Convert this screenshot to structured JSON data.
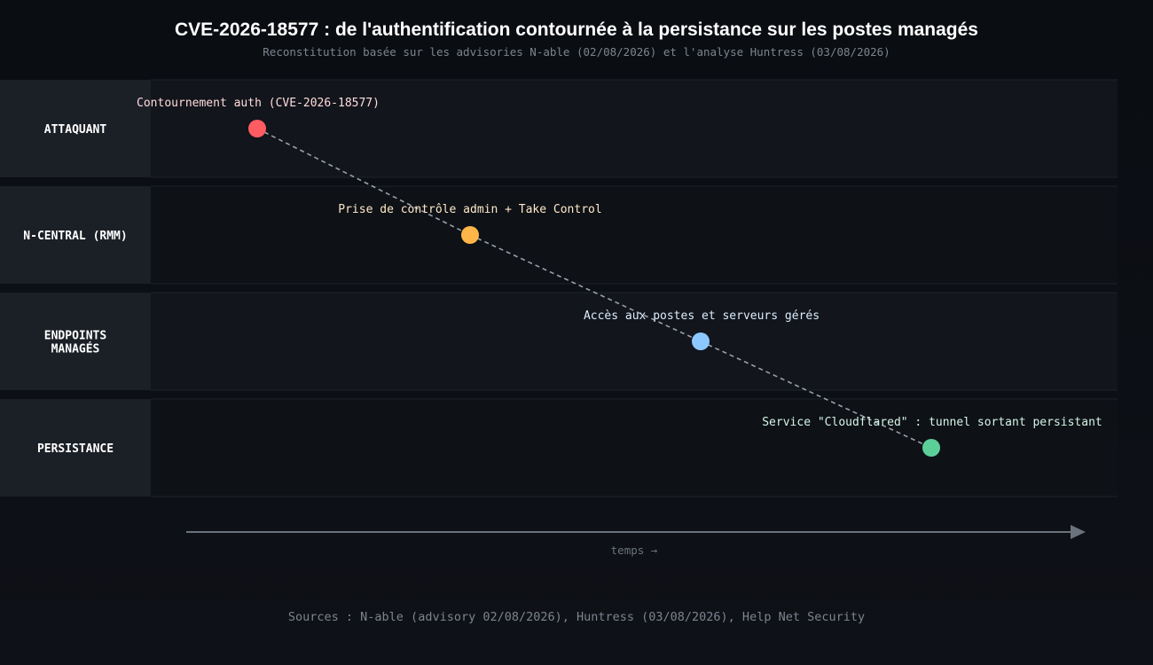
{
  "title": "CVE-2026-18577 : de l'authentification contournée à la persistance sur les postes managés",
  "subtitle": "Reconstitution basée sur les advisories N-able (02/08/2026) et l'analyse Huntress (03/08/2026)",
  "lanes": [
    {
      "label_lines": [
        "ATTAQUANT"
      ]
    },
    {
      "label_lines": [
        "N-CENTRAL (RMM)"
      ]
    },
    {
      "label_lines": [
        "ENDPOINTS",
        "MANAGÉS"
      ]
    },
    {
      "label_lines": [
        "PERSISTANCE"
      ]
    }
  ],
  "events": [
    {
      "label": "Contournement auth (CVE-2026-18577)",
      "lane": 0,
      "color": "#ff5c62",
      "label_color": "#ffdcdc"
    },
    {
      "label": "Prise de contrôle admin + Take Control",
      "lane": 1,
      "color": "#ffb547",
      "label_color": "#ffe9c8"
    },
    {
      "label": "Accès aux postes et serveurs gérés",
      "lane": 2,
      "color": "#8cc8ff",
      "label_color": "#dceeff"
    },
    {
      "label": "Service \"Cloudflared\" : tunnel sortant persistant",
      "lane": 3,
      "color": "#5ccf99",
      "label_color": "#d4f5e6"
    }
  ],
  "axis": {
    "label": "temps →"
  },
  "sources": "Sources : N-able (advisory 02/08/2026), Huntress (03/08/2026), Help Net Security",
  "colors": {
    "background": "#0c0f14",
    "lane_label_bg": "#1b1f26",
    "lane_bg_odd": "#12151b",
    "lane_bg_even": "#0e1116",
    "connector": "#9aa0a8",
    "axis": "#6b727c"
  }
}
